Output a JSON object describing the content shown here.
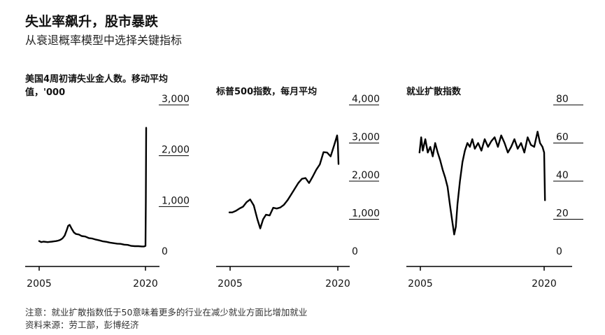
{
  "header": {
    "title": "失业率飙升，股市暴跌",
    "subtitle": "从衰退概率模型中选择关键指标"
  },
  "footer": {
    "note": "注意：就业扩散指数低于50意味着更多的行业在减少就业方面比增加就业",
    "source": "资料来源：劳工部，彭博经济"
  },
  "colors": {
    "line": "#000000",
    "axis": "#000000",
    "text": "#111111"
  },
  "chart_data": [
    {
      "type": "line",
      "title": "美国4周初请失业金人数。移动平均值，'000",
      "xlabel": "",
      "ylabel": "",
      "x_ticks": [
        "2005",
        "2020"
      ],
      "y_ticks": [
        "0",
        "1,000",
        "2,000",
        "3,000"
      ],
      "ylim": [
        0,
        3000
      ],
      "xlim": [
        2005,
        2020
      ],
      "grid": false,
      "x": [
        2005.0,
        2005.3,
        2005.6,
        2005.9,
        2006.2,
        2006.5,
        2006.8,
        2007.1,
        2007.4,
        2007.7,
        2008.0,
        2008.3,
        2008.6,
        2008.9,
        2009.1,
        2009.3,
        2009.6,
        2009.9,
        2010.2,
        2010.6,
        2011.0,
        2011.5,
        2012.0,
        2012.5,
        2013.0,
        2013.5,
        2014.0,
        2014.5,
        2015.0,
        2015.5,
        2016.0,
        2016.5,
        2017.0,
        2017.5,
        2018.0,
        2018.5,
        2019.0,
        2019.5,
        2019.8,
        2020.0,
        2020.05,
        2020.1
      ],
      "values": [
        320,
        300,
        310,
        305,
        300,
        305,
        310,
        315,
        320,
        330,
        345,
        375,
        430,
        540,
        620,
        640,
        560,
        490,
        460,
        450,
        420,
        410,
        380,
        370,
        350,
        335,
        315,
        305,
        290,
        280,
        270,
        265,
        250,
        245,
        225,
        220,
        220,
        215,
        215,
        225,
        1100,
        2550
      ]
    },
    {
      "type": "line",
      "title": "标普500指数，每月平均",
      "xlabel": "",
      "ylabel": "",
      "x_ticks": [
        "2005",
        "2020"
      ],
      "y_ticks": [
        "0",
        "1,000",
        "2,000",
        "3,000",
        "4,000"
      ],
      "ylim": [
        0,
        4000
      ],
      "xlim": [
        2005,
        2020
      ],
      "grid": false,
      "x": [
        2004.9,
        2005.3,
        2005.8,
        2006.3,
        2006.8,
        2007.3,
        2007.8,
        2008.3,
        2008.8,
        2009.2,
        2009.6,
        2010.0,
        2010.5,
        2011.0,
        2011.5,
        2012.0,
        2012.5,
        2013.0,
        2013.5,
        2014.0,
        2014.5,
        2015.0,
        2015.5,
        2016.0,
        2016.5,
        2017.0,
        2017.5,
        2018.0,
        2018.5,
        2019.0,
        2019.5,
        2019.9,
        2020.0,
        2020.1
      ],
      "values": [
        1180,
        1180,
        1220,
        1280,
        1330,
        1450,
        1520,
        1360,
        1000,
        760,
        1000,
        1120,
        1100,
        1300,
        1280,
        1310,
        1380,
        1500,
        1650,
        1800,
        1950,
        2060,
        2080,
        1950,
        2120,
        2300,
        2440,
        2760,
        2750,
        2650,
        2950,
        3200,
        3000,
        2450
      ]
    },
    {
      "type": "line",
      "title": "就业扩散指数",
      "xlabel": "",
      "ylabel": "",
      "x_ticks": [
        "2005",
        "2020"
      ],
      "y_ticks": [
        "0",
        "20",
        "40",
        "60",
        "80"
      ],
      "ylim": [
        0,
        80
      ],
      "xlim": [
        2005,
        2020
      ],
      "grid": false,
      "x": [
        2004.9,
        2005.1,
        2005.3,
        2005.6,
        2005.9,
        2006.2,
        2006.5,
        2006.8,
        2007.1,
        2007.4,
        2007.7,
        2008.0,
        2008.3,
        2008.6,
        2008.9,
        2009.1,
        2009.3,
        2009.5,
        2009.8,
        2010.1,
        2010.4,
        2010.7,
        2011.0,
        2011.3,
        2011.6,
        2012.0,
        2012.4,
        2012.8,
        2013.2,
        2013.6,
        2014.0,
        2014.4,
        2014.8,
        2015.2,
        2015.6,
        2016.0,
        2016.4,
        2016.8,
        2017.2,
        2017.6,
        2018.0,
        2018.4,
        2018.8,
        2019.2,
        2019.5,
        2019.8,
        2020.0,
        2020.1
      ],
      "values": [
        55,
        63,
        56,
        62,
        55,
        58,
        53,
        60,
        55,
        51,
        46,
        42,
        37,
        27,
        18,
        12,
        16,
        28,
        40,
        50,
        56,
        60,
        58,
        62,
        57,
        60,
        56,
        62,
        58,
        61,
        63,
        58,
        64,
        60,
        55,
        58,
        62,
        57,
        60,
        55,
        63,
        59,
        58,
        66,
        60,
        58,
        55,
        30
      ]
    }
  ]
}
